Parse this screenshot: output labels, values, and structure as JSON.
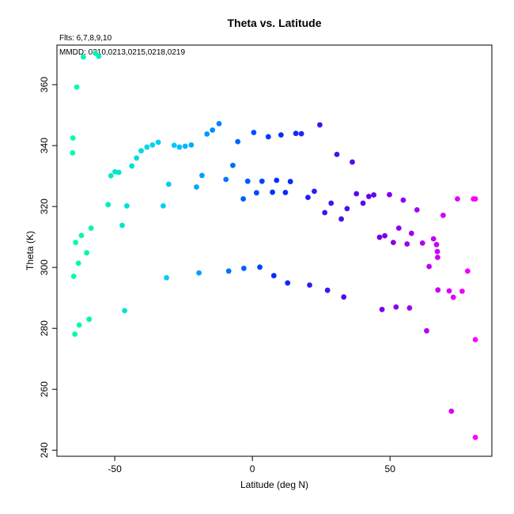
{
  "chart_data": {
    "type": "scatter",
    "title": "Theta vs. Latitude",
    "subtitle": "Flts: 6,7,8,9,10",
    "annotation": "MMDD: 0210,0213,0215,0218,0219",
    "xlabel": "Latitude (deg N)",
    "ylabel": "Theta (K)",
    "xlim": [
      -71,
      87
    ],
    "ylim": [
      238,
      373
    ],
    "xticks": [
      -50,
      0,
      50
    ],
    "yticks": [
      240,
      260,
      280,
      300,
      320,
      340,
      360
    ],
    "grid": false,
    "color_scale": [
      "#00ffa0",
      "#00c8ff",
      "#0030ff",
      "#6a00e8",
      "#ff00ff"
    ],
    "points": [
      {
        "x": -57,
        "y": 370.3
      },
      {
        "x": -55.8,
        "y": 369.3
      },
      {
        "x": -61.4,
        "y": 369.1
      },
      {
        "x": -63.8,
        "y": 359.2
      },
      {
        "x": -65.2,
        "y": 342.5
      },
      {
        "x": -65.3,
        "y": 337.6
      },
      {
        "x": -64.2,
        "y": 308.2
      },
      {
        "x": -62.1,
        "y": 310.5
      },
      {
        "x": -58.6,
        "y": 312.9
      },
      {
        "x": -60.2,
        "y": 304.8
      },
      {
        "x": -63.2,
        "y": 301.4
      },
      {
        "x": -64.9,
        "y": 297.1
      },
      {
        "x": -59.3,
        "y": 283
      },
      {
        "x": -62.9,
        "y": 281.1
      },
      {
        "x": -64.5,
        "y": 278.1
      },
      {
        "x": -52.4,
        "y": 320.6
      },
      {
        "x": -51.4,
        "y": 330.1
      },
      {
        "x": -49.9,
        "y": 331.4
      },
      {
        "x": -48.5,
        "y": 331.2
      },
      {
        "x": -47.3,
        "y": 313.8
      },
      {
        "x": -45.6,
        "y": 320.2
      },
      {
        "x": -46.4,
        "y": 285.8
      },
      {
        "x": -43.8,
        "y": 333.3
      },
      {
        "x": -42.1,
        "y": 335.9
      },
      {
        "x": -40.4,
        "y": 338.3
      },
      {
        "x": -38.3,
        "y": 339.5
      },
      {
        "x": -36.3,
        "y": 340.2
      },
      {
        "x": -34.2,
        "y": 341.1
      },
      {
        "x": -32.4,
        "y": 320.2
      },
      {
        "x": -30.4,
        "y": 327.3
      },
      {
        "x": -31.2,
        "y": 296.6
      },
      {
        "x": -28.4,
        "y": 340.1
      },
      {
        "x": -26.5,
        "y": 339.5
      },
      {
        "x": -24.4,
        "y": 339.8
      },
      {
        "x": -22.2,
        "y": 340.2
      },
      {
        "x": -20.3,
        "y": 326.4
      },
      {
        "x": -18.3,
        "y": 330.2
      },
      {
        "x": -19.4,
        "y": 298.2
      },
      {
        "x": -16.5,
        "y": 343.8
      },
      {
        "x": -14.5,
        "y": 345.1
      },
      {
        "x": -12.1,
        "y": 347.2
      },
      {
        "x": -9.6,
        "y": 328.9
      },
      {
        "x": -8.6,
        "y": 298.8
      },
      {
        "x": -7.1,
        "y": 333.5
      },
      {
        "x": -5.3,
        "y": 341.3
      },
      {
        "x": -3.3,
        "y": 322.5
      },
      {
        "x": -1.7,
        "y": 328.3
      },
      {
        "x": 0.5,
        "y": 344.3
      },
      {
        "x": 1.5,
        "y": 324.5
      },
      {
        "x": 3.5,
        "y": 328.3
      },
      {
        "x": 5.8,
        "y": 342.9
      },
      {
        "x": 7.3,
        "y": 324.7
      },
      {
        "x": 8.8,
        "y": 328.6
      },
      {
        "x": 10.4,
        "y": 343.5
      },
      {
        "x": 12,
        "y": 324.6
      },
      {
        "x": 13.8,
        "y": 328.2
      },
      {
        "x": 15.8,
        "y": 344
      },
      {
        "x": 17.8,
        "y": 343.9
      },
      {
        "x": 20.2,
        "y": 323
      },
      {
        "x": 22.5,
        "y": 325
      },
      {
        "x": 24.5,
        "y": 346.8
      },
      {
        "x": 26.3,
        "y": 318
      },
      {
        "x": 28.6,
        "y": 321.1
      },
      {
        "x": 30.7,
        "y": 337.1
      },
      {
        "x": 32.3,
        "y": 315.9
      },
      {
        "x": 34.4,
        "y": 319.3
      },
      {
        "x": 36.3,
        "y": 334.6
      },
      {
        "x": 37.8,
        "y": 324.2
      },
      {
        "x": 40.2,
        "y": 321.1
      },
      {
        "x": 42.3,
        "y": 323.3
      },
      {
        "x": 44.1,
        "y": 323.8
      },
      {
        "x": -3.1,
        "y": 299.7
      },
      {
        "x": 2.7,
        "y": 300.1
      },
      {
        "x": 7.8,
        "y": 297.3
      },
      {
        "x": 12.8,
        "y": 294.9
      },
      {
        "x": 20.8,
        "y": 294.2
      },
      {
        "x": 27.3,
        "y": 292.5
      },
      {
        "x": 33.2,
        "y": 290.3
      },
      {
        "x": 46.2,
        "y": 309.9
      },
      {
        "x": 48.1,
        "y": 310.4
      },
      {
        "x": 49.8,
        "y": 323.9
      },
      {
        "x": 51.2,
        "y": 308.2
      },
      {
        "x": 53.2,
        "y": 312.9
      },
      {
        "x": 54.8,
        "y": 322.1
      },
      {
        "x": 56.2,
        "y": 307.7
      },
      {
        "x": 57.8,
        "y": 311.2
      },
      {
        "x": 59.8,
        "y": 318.9
      },
      {
        "x": 61.8,
        "y": 308
      },
      {
        "x": 64.2,
        "y": 300.3
      },
      {
        "x": 65.8,
        "y": 309.4
      },
      {
        "x": 66.9,
        "y": 307.5
      },
      {
        "x": 67.2,
        "y": 305.2
      },
      {
        "x": 67.3,
        "y": 303.3
      },
      {
        "x": 47.1,
        "y": 286.2
      },
      {
        "x": 52.2,
        "y": 287
      },
      {
        "x": 57.1,
        "y": 286.7
      },
      {
        "x": 63.3,
        "y": 279.2
      },
      {
        "x": 67.4,
        "y": 292.6
      },
      {
        "x": 69.3,
        "y": 317.1
      },
      {
        "x": 71.5,
        "y": 292.3
      },
      {
        "x": 73,
        "y": 290.2
      },
      {
        "x": 74.5,
        "y": 322.5
      },
      {
        "x": 76.2,
        "y": 292.2
      },
      {
        "x": 78.2,
        "y": 298.8
      },
      {
        "x": 80.3,
        "y": 322.5
      },
      {
        "x": 81,
        "y": 322.5
      },
      {
        "x": 72.3,
        "y": 252.8
      },
      {
        "x": 81,
        "y": 276.3
      },
      {
        "x": 81,
        "y": 244.2
      }
    ]
  }
}
